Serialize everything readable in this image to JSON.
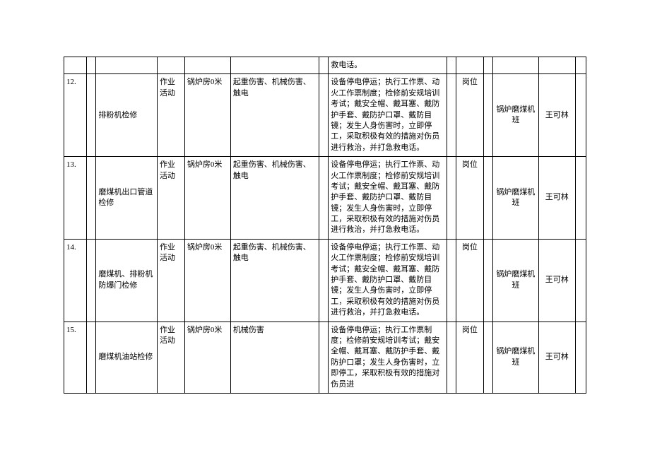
{
  "colors": {
    "background": "#ffffff",
    "border": "#000000",
    "text": "#000000"
  },
  "typography": {
    "font_family": "SimSun",
    "font_size_pt": 8
  },
  "rows": [
    {
      "num": "",
      "name": "",
      "type": "",
      "loc": "",
      "hazard": "",
      "measure": "救电话。",
      "level": "",
      "dept": "",
      "person": ""
    },
    {
      "num": "12.",
      "name": "排粉机检修",
      "type": "作业活动",
      "loc": "锅炉房0米",
      "hazard": "起重伤害、机械伤害、触电",
      "measure": "设备停电停运；执行工作票、动火工作票制度；检修前安规培训考试；戴安全帽、戴耳塞、戴防护手套、戴防护口罩、戴防目镜；发生人身伤害时，立即停工，采取积极有效的措施对伤员进行救治，并打急救电话。",
      "level": "岗位",
      "dept": "锅炉磨煤机班",
      "person": "王可林"
    },
    {
      "num": "13.",
      "name": "磨煤机出口管道检修",
      "type": "作业活动",
      "loc": "锅炉房0米",
      "hazard": "起重伤害、机械伤害、触电",
      "measure": "设备停电停运；执行工作票、动火工作票制度；检修前安规培训考试；戴安全帽、戴耳塞、戴防护手套、戴防护口罩、戴防目镜；发生人身伤害时，立即停工，采取积极有效的措施对伤员进行救治，并打急救电话。",
      "level": "岗位",
      "dept": "锅炉磨煤机班",
      "person": "王可林"
    },
    {
      "num": "14.",
      "name": "磨煤机、排粉机防爆门检修",
      "type": "作业活动",
      "loc": "锅炉房0米",
      "hazard": "起重伤害、机械伤害、触电",
      "measure": "设备停电停运；执行工作票、动火工作票制度；检修前安规培训考试；戴安全帽、戴耳塞、戴防护手套、戴防护口罩、戴防目镜；发生人身伤害时，立即停工，采取积极有效的措施对伤员进行救治，并打急救电话。",
      "level": "岗位",
      "dept": "锅炉磨煤机班",
      "person": "王可林"
    },
    {
      "num": "15.",
      "name": "磨煤机油站检修",
      "type": "作业活动",
      "loc": "锅炉房0米",
      "hazard": "机械伤害",
      "measure": "设备停电停运；执行工作票制度；检修前安规培训考试；戴安全帽、戴耳塞、戴防护手套、戴防护口罩；发生人身伤害时，立即停工，采取积极有效的措施对伤员进",
      "level": "岗位",
      "dept": "锅炉磨煤机班",
      "person": "王可林"
    }
  ]
}
